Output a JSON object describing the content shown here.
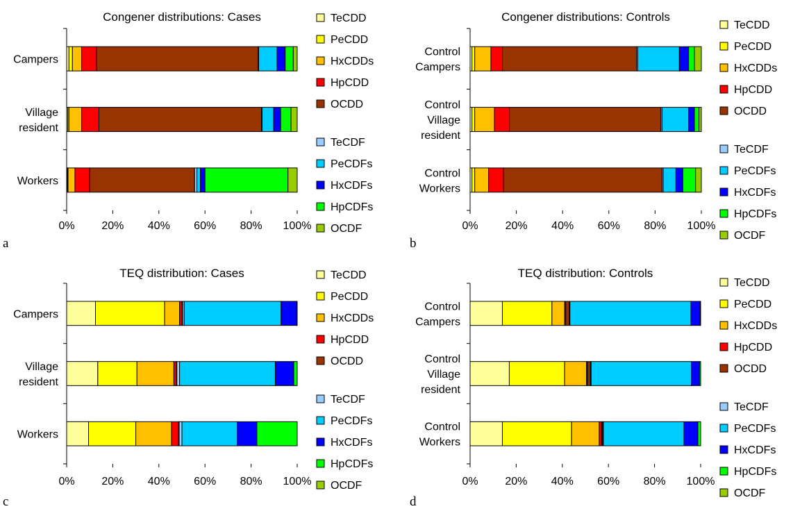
{
  "components": [
    {
      "name": "TeCDD",
      "color": "#ffff99"
    },
    {
      "name": "PeCDD",
      "color": "#ffff00"
    },
    {
      "name": "HxCDDs",
      "color": "#ffc000"
    },
    {
      "name": "HpCDD",
      "color": "#ff0000"
    },
    {
      "name": "OCDD",
      "color": "#993300"
    },
    {
      "name": "TeCDF",
      "color": "#99ccff"
    },
    {
      "name": "PeCDFs",
      "color": "#00ccff"
    },
    {
      "name": "HxCDFs",
      "color": "#0000ff"
    },
    {
      "name": "HpCDFs",
      "color": "#00ff00"
    },
    {
      "name": "OCDF",
      "color": "#99cc00"
    }
  ],
  "chart_data": [
    {
      "type": "bar",
      "orientation": "horizontal",
      "stacked": "percent",
      "panel_label": "a",
      "title": "Congener distributions: Cases",
      "categories": [
        [
          "Campers"
        ],
        [
          "Village",
          "resident"
        ],
        [
          "Workers"
        ]
      ],
      "xticks": [
        "0%",
        "20%",
        "40%",
        "60%",
        "80%",
        "100%"
      ],
      "xlim": [
        0,
        100
      ],
      "legend": [
        "TeCDD",
        "PeCDD",
        "HxCDDs",
        "HpCDD",
        "OCDD",
        "TeCDF",
        "PeCDFs",
        "HxCDFs",
        "HpCDFs",
        "OCDF"
      ],
      "legend_position": "right",
      "values": [
        [
          1.0,
          1.5,
          4.0,
          6.5,
          70.0,
          0.3,
          8.0,
          3.5,
          3.5,
          1.7
        ],
        [
          0.5,
          0.5,
          5.5,
          7.5,
          70.5,
          0.3,
          5.0,
          3.0,
          4.5,
          2.7
        ],
        [
          0.3,
          0.3,
          3.0,
          6.4,
          45.5,
          1.0,
          1.5,
          2.0,
          36.0,
          4.0
        ]
      ]
    },
    {
      "type": "bar",
      "orientation": "horizontal",
      "stacked": "percent",
      "panel_label": "b",
      "title": "Congener distributions: Controls",
      "categories": [
        [
          "Control",
          "Campers"
        ],
        [
          "Control",
          "Village",
          "resident"
        ],
        [
          "Control",
          "Workers"
        ]
      ],
      "xticks": [
        "0%",
        "20%",
        "40%",
        "60%",
        "80%",
        "100%"
      ],
      "xlim": [
        0,
        100
      ],
      "legend": [
        "TeCDD",
        "PeCDD",
        "HxCDDs",
        "HpCDD",
        "OCDD",
        "TeCDF",
        "PeCDFs",
        "HxCDFs",
        "HpCDFs",
        "OCDF"
      ],
      "legend_position": "right",
      "values": [
        [
          0.8,
          1.2,
          7.0,
          5.0,
          58.0,
          0.5,
          18.0,
          4.0,
          2.5,
          3.0
        ],
        [
          0.8,
          1.2,
          8.5,
          6.5,
          65.5,
          0.5,
          11.5,
          2.5,
          2.0,
          1.0
        ],
        [
          0.8,
          1.2,
          6.0,
          6.5,
          68.5,
          0.5,
          5.5,
          3.0,
          5.5,
          2.5
        ]
      ]
    },
    {
      "type": "bar",
      "orientation": "horizontal",
      "stacked": "percent",
      "panel_label": "c",
      "title": "TEQ distribution: Cases",
      "categories": [
        [
          "Campers"
        ],
        [
          "Village",
          "resident"
        ],
        [
          "Workers"
        ]
      ],
      "xticks": [
        "0%",
        "20%",
        "40%",
        "60%",
        "80%",
        "100%"
      ],
      "xlim": [
        0,
        100
      ],
      "legend": [
        "TeCDD",
        "PeCDD",
        "HxCDDs",
        "HpCDD",
        "OCDD",
        "TeCDF",
        "PeCDFs",
        "HxCDFs",
        "HpCDFs",
        "OCDF"
      ],
      "legend_position": "right",
      "values": [
        [
          12.5,
          30.0,
          6.5,
          1.0,
          0.3,
          0.7,
          42.0,
          6.8,
          0.2,
          0.0
        ],
        [
          13.5,
          17.0,
          16.0,
          1.0,
          0.3,
          1.2,
          41.5,
          8.0,
          1.5,
          0.0
        ],
        [
          9.5,
          20.5,
          15.5,
          3.0,
          0.3,
          1.2,
          24.0,
          8.5,
          17.5,
          0.0
        ]
      ]
    },
    {
      "type": "bar",
      "orientation": "horizontal",
      "stacked": "percent",
      "panel_label": "d",
      "title": "TEQ distribution: Controls",
      "categories": [
        [
          "Control",
          "Campers"
        ],
        [
          "Control",
          "Village",
          "resident"
        ],
        [
          "Control",
          "Workers"
        ]
      ],
      "xticks": [
        "0%",
        "20%",
        "40%",
        "60%",
        "80%",
        "100%"
      ],
      "xlim": [
        0,
        100
      ],
      "legend": [
        "TeCDD",
        "PeCDD",
        "HxCDDs",
        "HpCDD",
        "OCDD",
        "TeCDF",
        "PeCDFs",
        "HxCDFs",
        "HpCDFs",
        "OCDF"
      ],
      "legend_position": "right",
      "values": [
        [
          14.0,
          21.5,
          5.5,
          0.5,
          1.5,
          0.3,
          52.5,
          4.0,
          0.2,
          0.0
        ],
        [
          17.0,
          24.0,
          9.5,
          0.5,
          1.2,
          0.3,
          43.5,
          3.5,
          0.5,
          0.0
        ],
        [
          14.0,
          30.0,
          12.0,
          1.0,
          0.5,
          0.3,
          35.0,
          6.0,
          1.2,
          0.0
        ]
      ]
    }
  ]
}
